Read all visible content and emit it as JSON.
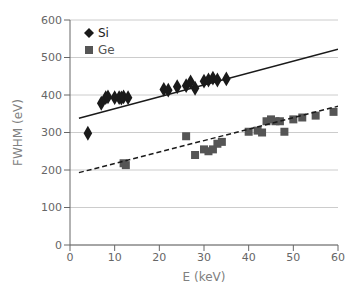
{
  "chart_data": {
    "type": "scatter",
    "title": "",
    "xlabel": "E (keV)",
    "ylabel": "FWHM (eV)",
    "xlim": [
      0,
      60
    ],
    "ylim": [
      0,
      600
    ],
    "xticks": [
      0,
      10,
      20,
      30,
      40,
      50,
      60
    ],
    "yticks": [
      0,
      100,
      200,
      300,
      400,
      500,
      600
    ],
    "grid": true,
    "legend": "upper left",
    "series": [
      {
        "name": "Si",
        "type": "scatter",
        "color": "#1a1a1a",
        "marker": "diamond",
        "x": [
          4,
          7,
          8,
          8.5,
          10,
          11,
          11.5,
          12,
          13,
          21,
          22,
          24,
          26,
          27,
          28,
          30,
          31,
          32,
          33,
          35
        ],
        "values": [
          298,
          378,
          393,
          395,
          393,
          393,
          392,
          395,
          393,
          415,
          413,
          422,
          425,
          435,
          418,
          437,
          440,
          445,
          440,
          443
        ]
      },
      {
        "name": "Ge",
        "type": "scatter",
        "color": "#555555",
        "marker": "square",
        "x": [
          12,
          12.5,
          26,
          28,
          30,
          31,
          32,
          33,
          34,
          40,
          42,
          43,
          44,
          45,
          46,
          47,
          48,
          50,
          52,
          55,
          59
        ],
        "values": [
          218,
          213,
          290,
          240,
          255,
          250,
          255,
          270,
          275,
          302,
          305,
          300,
          330,
          335,
          330,
          330,
          302,
          335,
          340,
          345,
          355
        ]
      },
      {
        "type": "line",
        "color": "#1a1a1a",
        "line_style": "solid",
        "x": [
          2,
          60
        ],
        "values": [
          338,
          522
        ]
      },
      {
        "type": "line",
        "color": "#1a1a1a",
        "line_style": "dashed",
        "x": [
          2,
          60
        ],
        "values": [
          193,
          370
        ]
      }
    ]
  }
}
